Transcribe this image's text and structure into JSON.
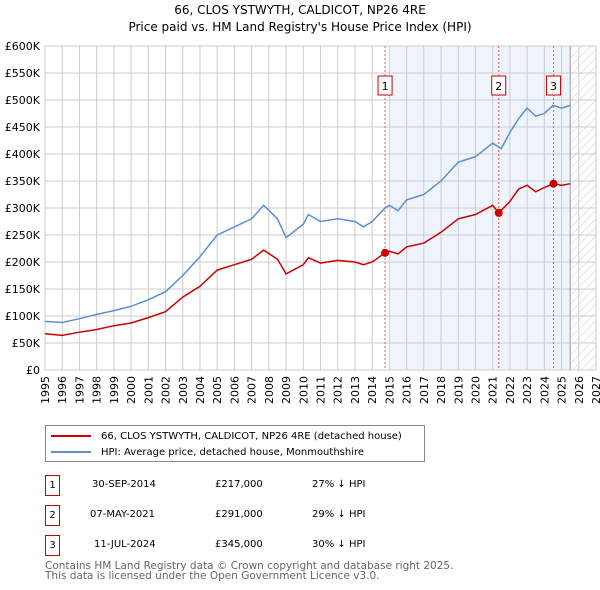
{
  "title": "66, CLOS YSTWYTH, CALDICOT, NP26 4RE",
  "subtitle": "Price paid vs. HM Land Registry's House Price Index (HPI)",
  "chart_data": {
    "type": "line",
    "title": "66, CLOS YSTWYTH, CALDICOT, NP26 4RE — Price paid vs. HM Land Registry's House Price Index (HPI)",
    "xlim": [
      1995,
      2027
    ],
    "ylim": [
      0,
      600000
    ],
    "y_ticks": [
      "£0",
      "£50K",
      "£100K",
      "£150K",
      "£200K",
      "£250K",
      "£300K",
      "£350K",
      "£400K",
      "£450K",
      "£500K",
      "£550K",
      "£600K"
    ],
    "x_ticks": [
      "1995",
      "1996",
      "1997",
      "1998",
      "1999",
      "2000",
      "2001",
      "2002",
      "2003",
      "2004",
      "2005",
      "2006",
      "2007",
      "2008",
      "2009",
      "2010",
      "2011",
      "2012",
      "2013",
      "2014",
      "2015",
      "2016",
      "2017",
      "2018",
      "2019",
      "2020",
      "2021",
      "2022",
      "2023",
      "2024",
      "2025",
      "2026",
      "2027"
    ],
    "grid": true,
    "series": [
      {
        "name": "66, CLOS YSTWYTH, CALDICOT, NP26 4RE (detached house)",
        "color": "#cc0000",
        "x": [
          1995,
          1996,
          1997,
          1998,
          1999,
          2000,
          2001,
          2002,
          2003,
          2004,
          2005,
          2006,
          2007,
          2007.7,
          2008.5,
          2009,
          2010,
          2010.3,
          2011,
          2012,
          2013,
          2013.5,
          2014,
          2014.75,
          2015,
          2015.5,
          2016,
          2017,
          2018,
          2019,
          2020,
          2021,
          2021.35,
          2022,
          2022.5,
          2023,
          2023.5,
          2024,
          2024.53,
          2025,
          2025.5
        ],
        "y": [
          67000,
          64000,
          70000,
          75000,
          82000,
          87000,
          97000,
          108000,
          135000,
          155000,
          185000,
          195000,
          205000,
          222000,
          205000,
          178000,
          195000,
          208000,
          198000,
          203000,
          200000,
          195000,
          200000,
          217000,
          220000,
          215000,
          228000,
          235000,
          255000,
          280000,
          288000,
          305000,
          291000,
          312000,
          335000,
          342000,
          330000,
          338000,
          345000,
          342000,
          345000
        ]
      },
      {
        "name": "HPI: Average price, detached house, Monmouthshire",
        "color": "#5b8fd4",
        "x": [
          1995,
          1996,
          1997,
          1998,
          1999,
          2000,
          2001,
          2002,
          2003,
          2004,
          2005,
          2006,
          2007,
          2007.7,
          2008.5,
          2009,
          2010,
          2010.3,
          2011,
          2012,
          2013,
          2013.5,
          2014,
          2014.75,
          2015,
          2015.5,
          2016,
          2017,
          2018,
          2019,
          2020,
          2021,
          2021.5,
          2022,
          2022.5,
          2023,
          2023.5,
          2024,
          2024.5,
          2025,
          2025.5
        ],
        "y": [
          90000,
          88000,
          95000,
          103000,
          110000,
          118000,
          130000,
          145000,
          175000,
          210000,
          250000,
          265000,
          280000,
          305000,
          280000,
          245000,
          270000,
          288000,
          275000,
          280000,
          275000,
          265000,
          275000,
          300000,
          305000,
          295000,
          315000,
          325000,
          350000,
          385000,
          395000,
          420000,
          410000,
          440000,
          465000,
          485000,
          470000,
          475000,
          490000,
          485000,
          490000
        ]
      }
    ],
    "sales": [
      {
        "label": "1",
        "x": 2014.75,
        "y": 217000
      },
      {
        "label": "2",
        "x": 2021.35,
        "y": 291000
      },
      {
        "label": "3",
        "x": 2024.53,
        "y": 345000
      }
    ],
    "shaded_range": [
      2015,
      2025.5
    ],
    "forecast_hatch_range": [
      2025.5,
      2027
    ],
    "legend_position": "below"
  },
  "legend": [
    {
      "label": "66, CLOS YSTWYTH, CALDICOT, NP26 4RE (detached house)",
      "color": "#cc0000"
    },
    {
      "label": "HPI: Average price, detached house, Monmouthshire",
      "color": "#5b8fd4"
    }
  ],
  "transactions": [
    {
      "num": "1",
      "date": "30-SEP-2014",
      "price": "£217,000",
      "hpi": "27% ↓ HPI"
    },
    {
      "num": "2",
      "date": "07-MAY-2021",
      "price": "£291,000",
      "hpi": "29% ↓ HPI"
    },
    {
      "num": "3",
      "date": "11-JUL-2024",
      "price": "£345,000",
      "hpi": "30% ↓ HPI"
    }
  ],
  "footer": [
    "Contains HM Land Registry data © Crown copyright and database right 2025.",
    "This data is licensed under the Open Government Licence v3.0."
  ]
}
